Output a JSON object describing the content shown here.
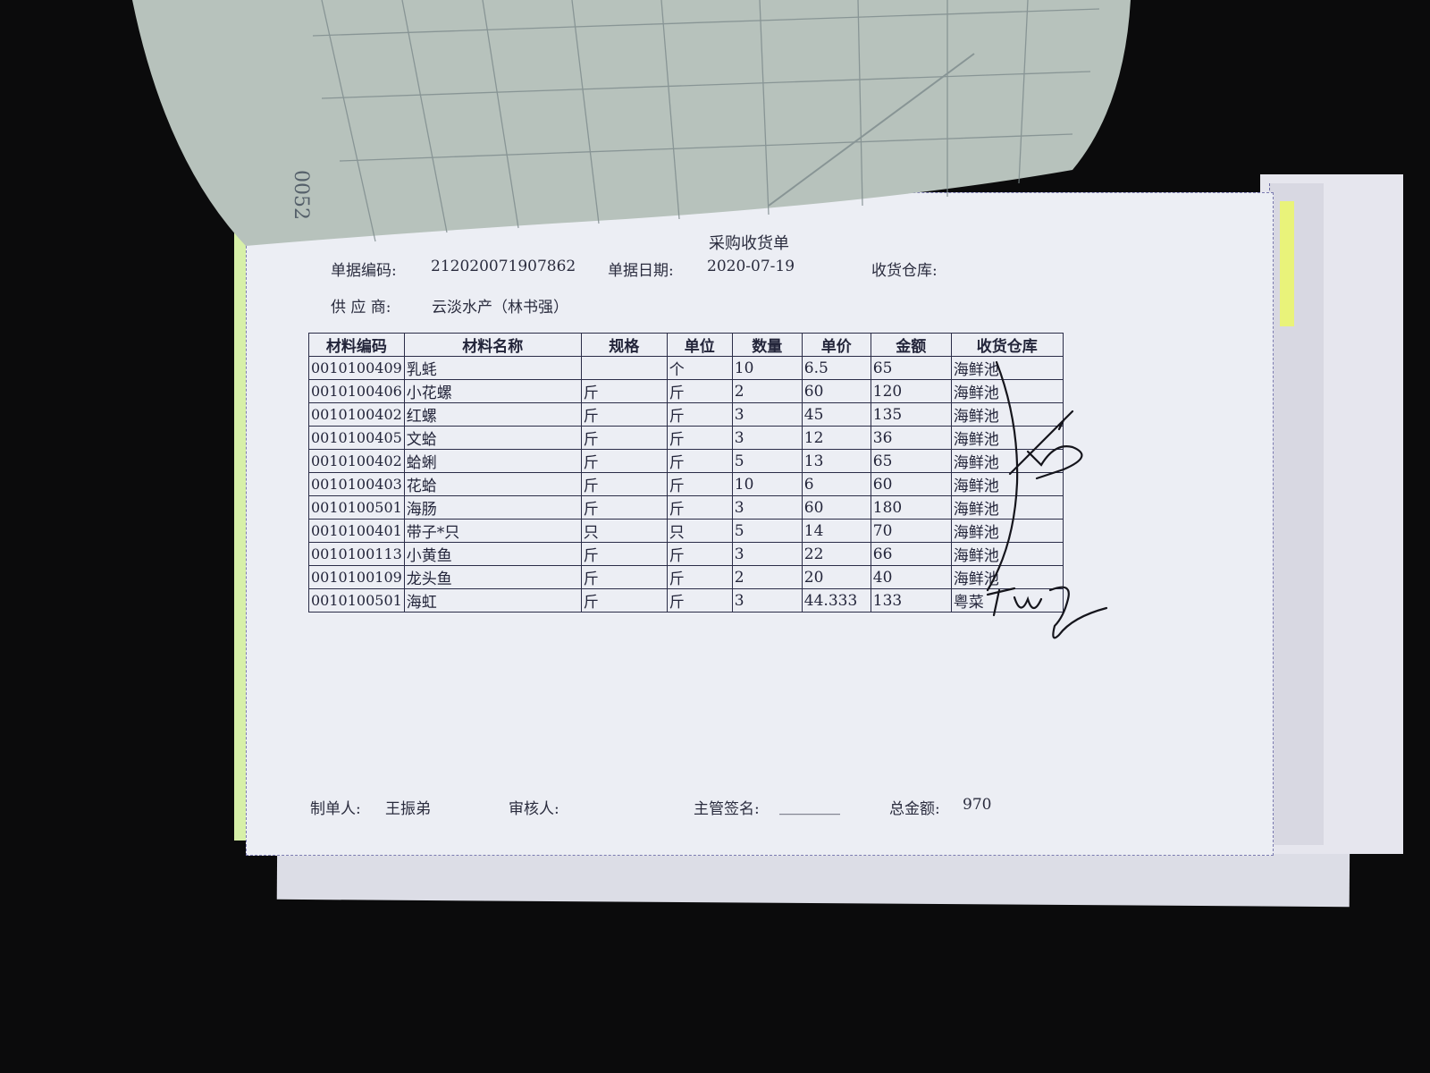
{
  "document": {
    "title": "采购收货单",
    "fields": {
      "doc_no_label": "单据编码:",
      "doc_no": "212020071907862",
      "date_label": "单据日期:",
      "date": "2020-07-19",
      "warehouse_label": "收货仓库:",
      "supplier_label": "供 应 商:",
      "supplier": "云淡水产（林书强）"
    },
    "table": {
      "headers": [
        "材料编码",
        "材料名称",
        "规格",
        "单位",
        "数量",
        "单价",
        "金额",
        "收货仓库"
      ],
      "rows": [
        [
          "0010100409",
          "乳蚝",
          "",
          "个",
          "10",
          "6.5",
          "65",
          "海鲜池"
        ],
        [
          "0010100406",
          "小花螺",
          "斤",
          "斤",
          "2",
          "60",
          "120",
          "海鲜池"
        ],
        [
          "0010100402",
          "红螺",
          "斤",
          "斤",
          "3",
          "45",
          "135",
          "海鲜池"
        ],
        [
          "0010100405",
          "文蛤",
          "斤",
          "斤",
          "3",
          "12",
          "36",
          "海鲜池"
        ],
        [
          "0010100402",
          "蛤蜊",
          "斤",
          "斤",
          "5",
          "13",
          "65",
          "海鲜池"
        ],
        [
          "0010100403",
          "花蛤",
          "斤",
          "斤",
          "10",
          "6",
          "60",
          "海鲜池"
        ],
        [
          "0010100501",
          "海肠",
          "斤",
          "斤",
          "3",
          "60",
          "180",
          "海鲜池"
        ],
        [
          "0010100401",
          "带子*只",
          "只",
          "只",
          "5",
          "14",
          "70",
          "海鲜池"
        ],
        [
          "0010100113",
          "小黄鱼",
          "斤",
          "斤",
          "3",
          "22",
          "66",
          "海鲜池"
        ],
        [
          "0010100109",
          "龙头鱼",
          "斤",
          "斤",
          "2",
          "20",
          "40",
          "海鲜池"
        ],
        [
          "0010100501",
          "海虹",
          "斤",
          "斤",
          "3",
          "44.333",
          "133",
          "粤菜"
        ]
      ]
    },
    "footer": {
      "maker_label": "制单人:",
      "maker": "王振弟",
      "reviewer_label": "审核人:",
      "supervisor_label": "主管签名:",
      "supervisor_blank": "________",
      "total_label": "总金额:",
      "total": "970"
    }
  },
  "colors": {
    "background": "#0b0b0c",
    "paper": "#eceef4",
    "top_sheet": "#b9c3bd",
    "ink": "#23253a"
  }
}
